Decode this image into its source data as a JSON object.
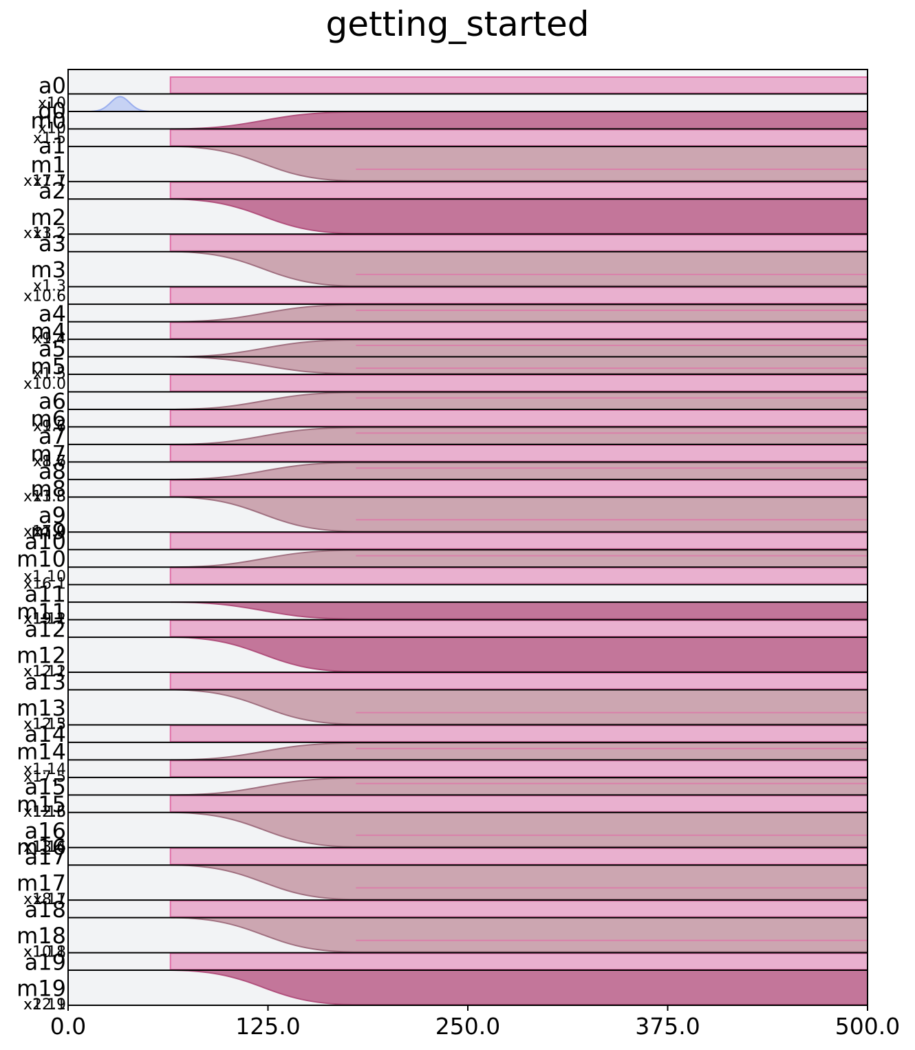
{
  "chart_data": {
    "type": "area",
    "title": "getting_started",
    "xlabel": "",
    "ylabel": "",
    "xlim": [
      0,
      500
    ],
    "xticks": [
      "0.0",
      "125.0",
      "250.0",
      "375.0",
      "500.0"
    ],
    "grid": false,
    "legend": "none",
    "colors": {
      "background": "#f2f3f5",
      "pulse_fill": "#e9b0cf",
      "pulse_edge": "#e070a8",
      "readout_fill": "#c06f95",
      "readout_edge": "#b0507c",
      "readout_alt_fill": "#c9a1ad",
      "readout_alt_edge": "#a07080",
      "gaussian_fill": "#c6d2f4",
      "gaussian_edge": "#9aaeee"
    },
    "channels": [
      {
        "label": "a0",
        "kind": "pulse",
        "start": 64,
        "rows": 1
      },
      {
        "label": "x10",
        "kind": "gaussian",
        "start": 15,
        "end": 50,
        "rows": 1
      },
      {
        "label": "d0",
        "kind": "empty",
        "rows": 0
      },
      {
        "label": "m0",
        "kind": "readout",
        "start": 64,
        "end": 180,
        "dir": "up",
        "strength": 1.0,
        "rows": 1
      },
      {
        "label": "x10",
        "kind": "empty",
        "rows": 0
      },
      {
        "label": "x1.5",
        "kind": "pulse",
        "start": 64,
        "rows": 1
      },
      {
        "label": "a1",
        "kind": "empty",
        "rows": 0
      },
      {
        "label": "m1",
        "kind": "readout",
        "start": 64,
        "end": 180,
        "dir": "down",
        "strength": 0.7,
        "rows": 2
      },
      {
        "label": "x1.1",
        "kind": "empty",
        "rows": 0
      },
      {
        "label": "x17.7",
        "kind": "empty",
        "rows": 0
      },
      {
        "label": "a2",
        "kind": "pulse",
        "start": 64,
        "rows": 1
      },
      {
        "label": "m2",
        "kind": "readout",
        "start": 64,
        "end": 180,
        "dir": "down",
        "strength": 0.9,
        "rows": 2
      },
      {
        "label": "x1.2",
        "kind": "empty",
        "rows": 0
      },
      {
        "label": "x13.2",
        "kind": "empty",
        "rows": 0
      },
      {
        "label": "a3",
        "kind": "pulse",
        "start": 64,
        "rows": 1
      },
      {
        "label": "m3",
        "kind": "readout",
        "start": 64,
        "end": 180,
        "dir": "down",
        "strength": 0.3,
        "rows": 2
      },
      {
        "label": "x1.3",
        "kind": "empty",
        "rows": 0
      },
      {
        "label": "x10.6",
        "kind": "pulse",
        "start": 64,
        "rows": 1
      },
      {
        "label": "a4",
        "kind": "readout",
        "start": 64,
        "end": 180,
        "dir": "up",
        "strength": 0.7,
        "rows": 1
      },
      {
        "label": "m4",
        "kind": "pulse",
        "start": 64,
        "rows": 1
      },
      {
        "label": "x1.4",
        "kind": "empty",
        "rows": 0
      },
      {
        "label": "x9.4",
        "kind": "empty",
        "rows": 0
      },
      {
        "label": "a5",
        "kind": "readout",
        "start": 64,
        "end": 180,
        "dir": "up",
        "strength": 0.6,
        "rows": 1
      },
      {
        "label": "m5",
        "kind": "readout",
        "start": 64,
        "end": 180,
        "dir": "down",
        "strength": 0.3,
        "rows": 1
      },
      {
        "label": "x1.5",
        "kind": "empty",
        "rows": 0
      },
      {
        "label": "x10.0",
        "kind": "pulse",
        "start": 64,
        "rows": 1
      },
      {
        "label": "a6",
        "kind": "readout",
        "start": 64,
        "end": 180,
        "dir": "up",
        "strength": 0.8,
        "rows": 1
      },
      {
        "label": "m6",
        "kind": "pulse",
        "start": 64,
        "rows": 1
      },
      {
        "label": "x1.6",
        "kind": "empty",
        "rows": 0
      },
      {
        "label": "x9.7",
        "kind": "empty",
        "rows": 0
      },
      {
        "label": "a7",
        "kind": "readout",
        "start": 64,
        "end": 180,
        "dir": "up",
        "strength": 0.7,
        "rows": 1
      },
      {
        "label": "m7",
        "kind": "pulse",
        "start": 64,
        "rows": 1
      },
      {
        "label": "x1.7",
        "kind": "empty",
        "rows": 0
      },
      {
        "label": "x8.6",
        "kind": "empty",
        "rows": 0
      },
      {
        "label": "a8",
        "kind": "readout",
        "start": 64,
        "end": 180,
        "dir": "up",
        "strength": 0.4,
        "rows": 1
      },
      {
        "label": "m8",
        "kind": "pulse",
        "start": 64,
        "rows": 1
      },
      {
        "label": "x1.8",
        "kind": "empty",
        "rows": 0
      },
      {
        "label": "x13.3",
        "kind": "empty",
        "rows": 0
      },
      {
        "label": "a9",
        "kind": "readout",
        "start": 64,
        "end": 180,
        "dir": "down",
        "strength": 0.3,
        "rows": 2
      },
      {
        "label": "m9",
        "kind": "empty",
        "rows": 0
      },
      {
        "label": "x1.9",
        "kind": "empty",
        "rows": 0
      },
      {
        "label": "x17.0",
        "kind": "empty",
        "rows": 0
      },
      {
        "label": "a10",
        "kind": "pulse",
        "start": 64,
        "rows": 1
      },
      {
        "label": "m10",
        "kind": "readout",
        "start": 64,
        "end": 180,
        "dir": "up",
        "strength": 0.7,
        "rows": 1
      },
      {
        "label": "x1.10",
        "kind": "pulse",
        "start": 64,
        "rows": 1
      },
      {
        "label": "x16.1",
        "kind": "empty",
        "rows": 0
      },
      {
        "label": "a11",
        "kind": "empty",
        "rows": 1
      },
      {
        "label": "m11",
        "kind": "readout",
        "start": 64,
        "end": 180,
        "dir": "down",
        "strength": 1.0,
        "rows": 1
      },
      {
        "label": "x1.11",
        "kind": "empty",
        "rows": 0
      },
      {
        "label": "x19.2",
        "kind": "empty",
        "rows": 0
      },
      {
        "label": "a12",
        "kind": "pulse",
        "start": 64,
        "rows": 1
      },
      {
        "label": "m12",
        "kind": "readout",
        "start": 64,
        "end": 180,
        "dir": "down",
        "strength": 0.9,
        "rows": 2
      },
      {
        "label": "x1.12",
        "kind": "empty",
        "rows": 0
      },
      {
        "label": "x12.1",
        "kind": "empty",
        "rows": 0
      },
      {
        "label": "a13",
        "kind": "pulse",
        "start": 64,
        "rows": 1
      },
      {
        "label": "m13",
        "kind": "readout",
        "start": 64,
        "end": 180,
        "dir": "down",
        "strength": 0.3,
        "rows": 2
      },
      {
        "label": "x1.13",
        "kind": "empty",
        "rows": 0
      },
      {
        "label": "x12.5",
        "kind": "empty",
        "rows": 0
      },
      {
        "label": "a14",
        "kind": "pulse",
        "start": 64,
        "rows": 1
      },
      {
        "label": "m14",
        "kind": "readout",
        "start": 64,
        "end": 180,
        "dir": "up",
        "strength": 0.7,
        "rows": 1
      },
      {
        "label": "x1.14",
        "kind": "pulse",
        "start": 64,
        "rows": 1
      },
      {
        "label": "x17.5",
        "kind": "empty",
        "rows": 0
      },
      {
        "label": "a15",
        "kind": "readout",
        "start": 64,
        "end": 180,
        "dir": "up",
        "strength": 0.4,
        "rows": 1
      },
      {
        "label": "m15",
        "kind": "pulse",
        "start": 64,
        "rows": 1
      },
      {
        "label": "x1.15",
        "kind": "empty",
        "rows": 0
      },
      {
        "label": "x12.6",
        "kind": "empty",
        "rows": 0
      },
      {
        "label": "a16",
        "kind": "readout",
        "start": 64,
        "end": 180,
        "dir": "down",
        "strength": 0.6,
        "rows": 2
      },
      {
        "label": "m16",
        "kind": "empty",
        "rows": 0
      },
      {
        "label": "x1.16",
        "kind": "empty",
        "rows": 0
      },
      {
        "label": "x13.4",
        "kind": "empty",
        "rows": 0
      },
      {
        "label": "a17",
        "kind": "pulse",
        "start": 64,
        "rows": 1
      },
      {
        "label": "m17",
        "kind": "readout",
        "start": 64,
        "end": 180,
        "dir": "down",
        "strength": 0.7,
        "rows": 2
      },
      {
        "label": "x1.17",
        "kind": "empty",
        "rows": 0
      },
      {
        "label": "x8.1",
        "kind": "empty",
        "rows": 0
      },
      {
        "label": "a18",
        "kind": "pulse",
        "start": 64,
        "rows": 1
      },
      {
        "label": "m18",
        "kind": "readout",
        "start": 64,
        "end": 180,
        "dir": "down",
        "strength": 0.7,
        "rows": 2
      },
      {
        "label": "x1.18",
        "kind": "empty",
        "rows": 0
      },
      {
        "label": "x10.1",
        "kind": "empty",
        "rows": 0
      },
      {
        "label": "a19",
        "kind": "pulse",
        "start": 64,
        "rows": 1
      },
      {
        "label": "m19",
        "kind": "readout",
        "start": 64,
        "end": 180,
        "dir": "down",
        "strength": 0.9,
        "rows": 2
      },
      {
        "label": "x1.19",
        "kind": "empty",
        "rows": 0
      },
      {
        "label": "x22.1",
        "kind": "empty",
        "rows": 0
      }
    ]
  }
}
